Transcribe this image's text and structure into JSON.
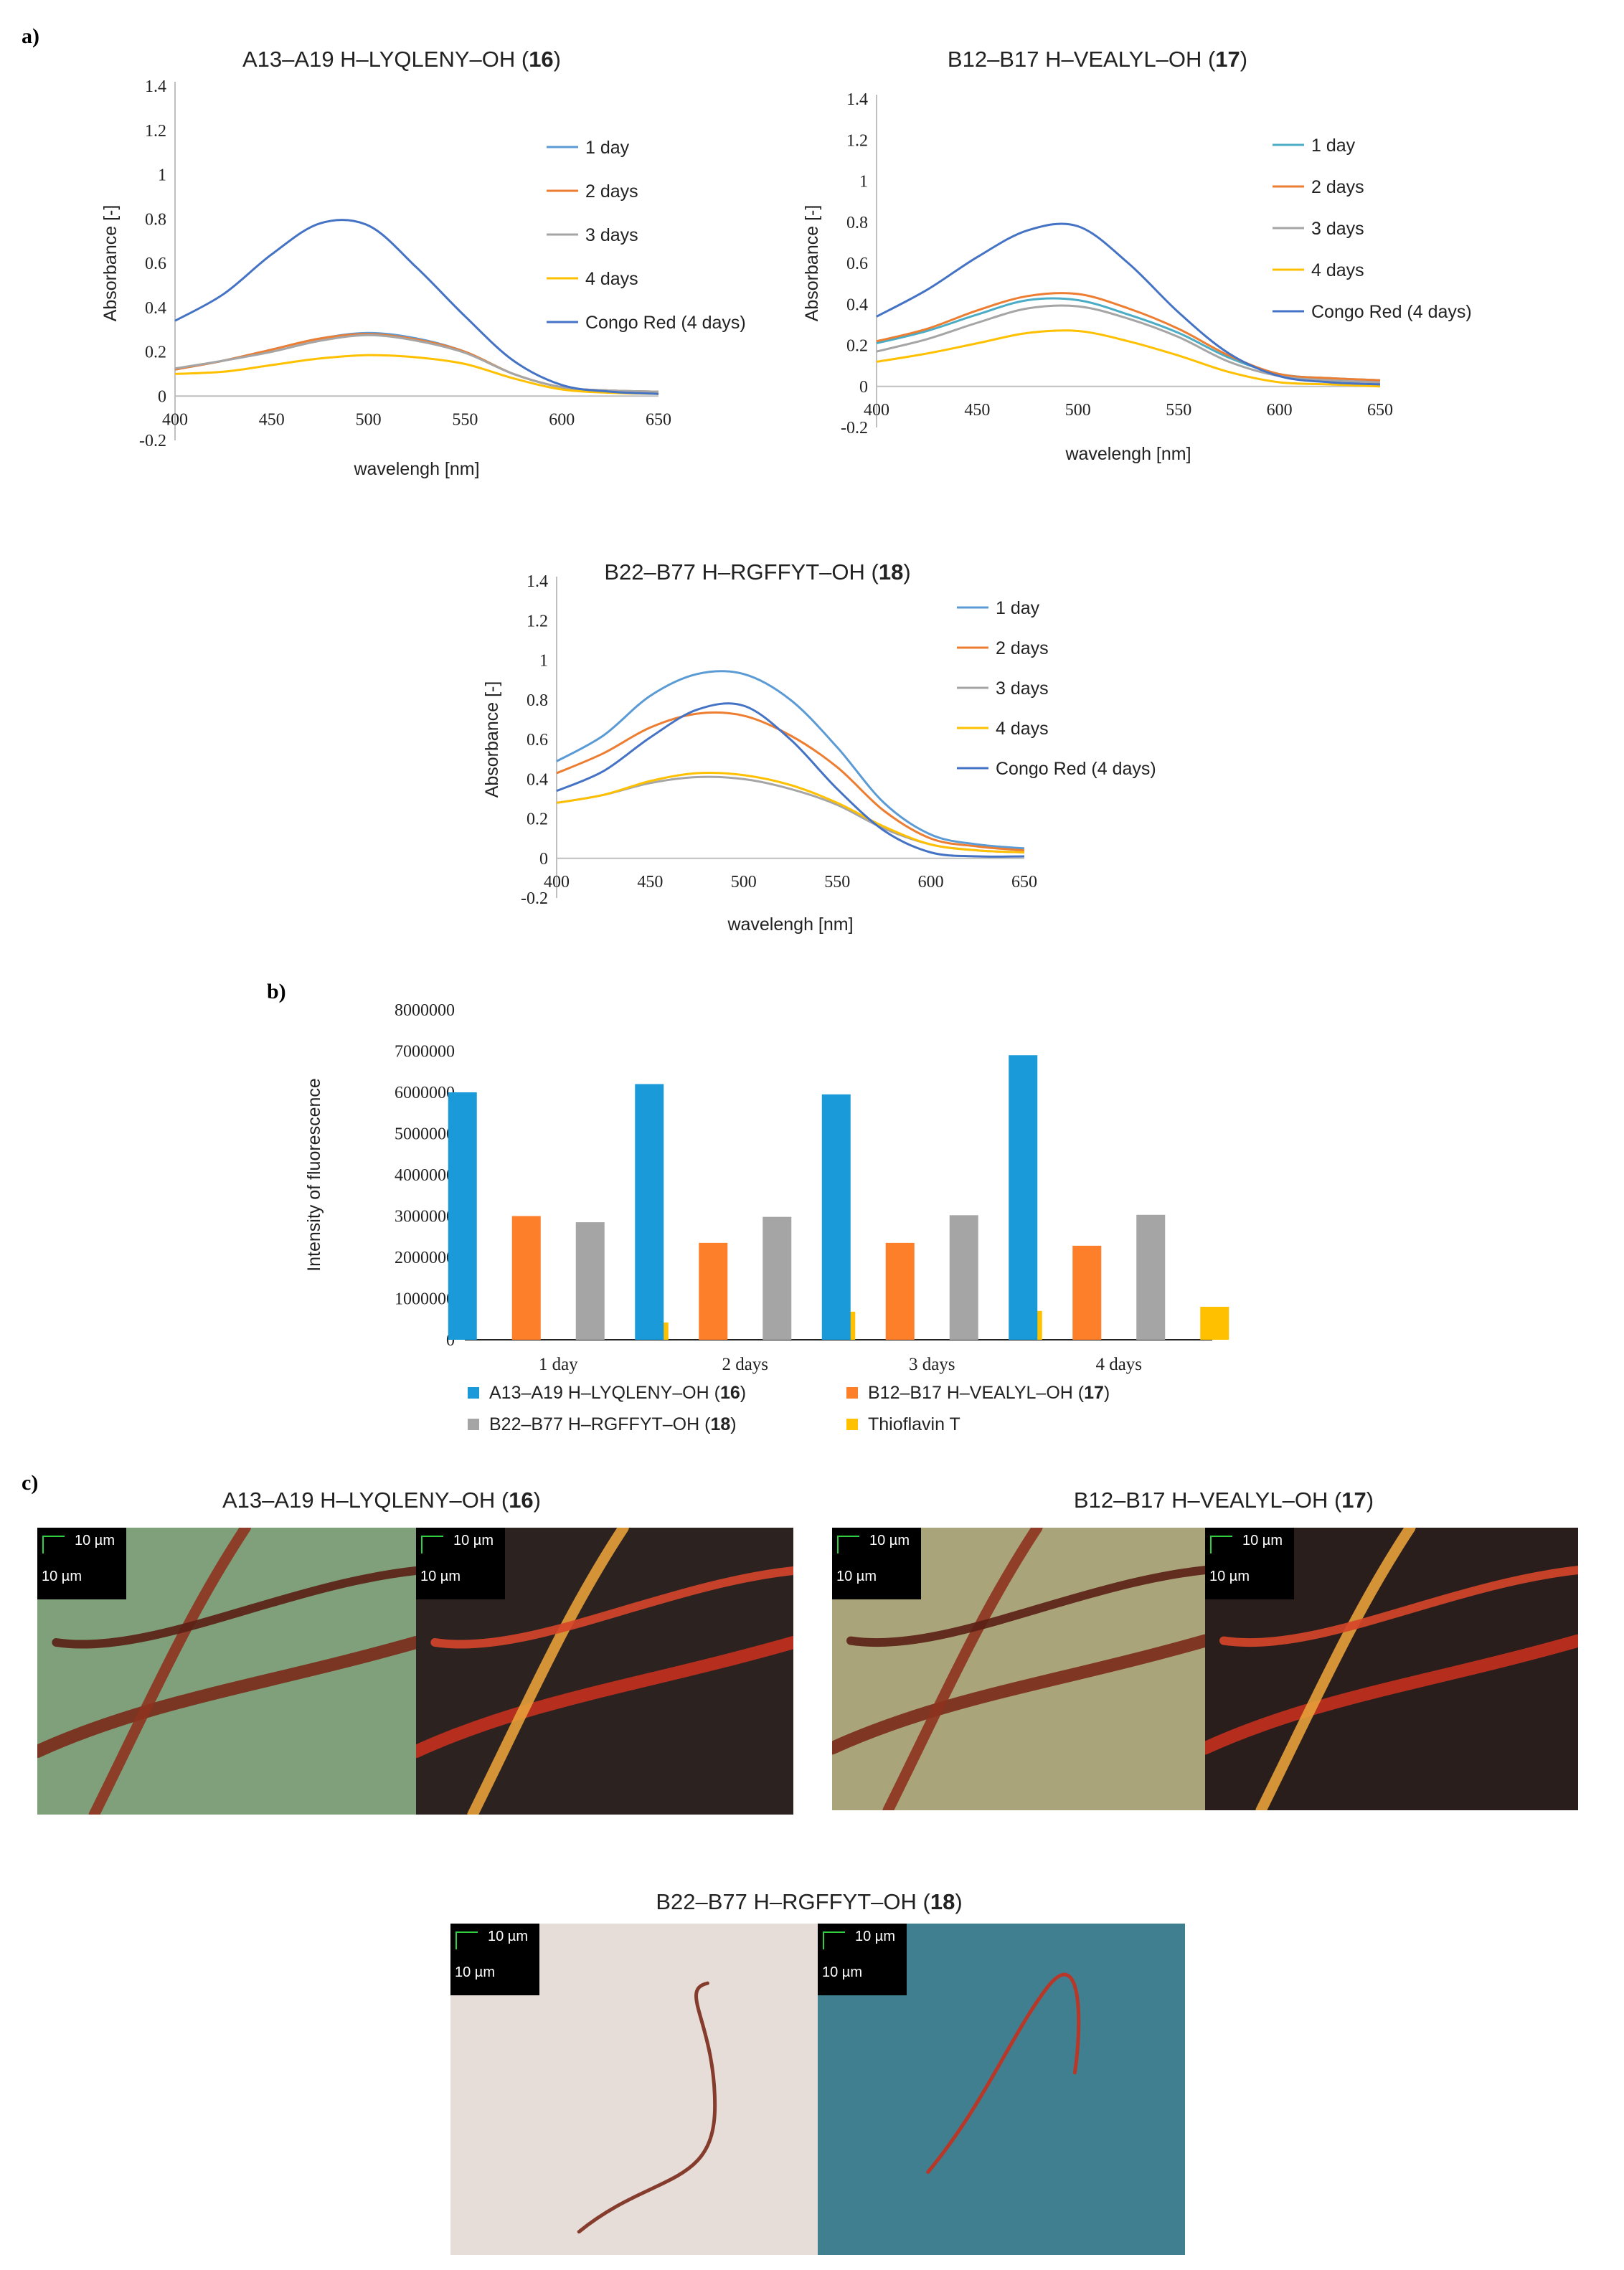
{
  "panel_labels": {
    "a": "a)",
    "b": "b)",
    "c": "c)"
  },
  "chart_data": [
    {
      "id": "absorbance-16",
      "type": "line",
      "title": "A13–A19 H–LYQLENY–OH",
      "compound": "16",
      "xlabel": "wavelengh [nm]",
      "ylabel": "Absorbance [-]",
      "xlim": [
        400,
        650
      ],
      "ylim": [
        -0.2,
        1.4
      ],
      "x_ticks": [
        "400",
        "450",
        "500",
        "550",
        "600",
        "650"
      ],
      "y_ticks": [
        "1.4",
        "1.2",
        "1",
        "0.8",
        "0.6",
        "0.4",
        "0.2",
        "0",
        "-0.2"
      ],
      "legend_position": "right",
      "x": [
        400,
        425,
        450,
        475,
        500,
        525,
        550,
        575,
        600,
        625,
        650
      ],
      "series": [
        {
          "name": "1 day",
          "color": "#5b9bd5",
          "values": [
            0.12,
            0.16,
            0.21,
            0.26,
            0.285,
            0.26,
            0.2,
            0.1,
            0.04,
            0.025,
            0.02
          ]
        },
        {
          "name": "2 days",
          "color": "#ed7d31",
          "values": [
            0.12,
            0.16,
            0.21,
            0.26,
            0.28,
            0.255,
            0.2,
            0.1,
            0.04,
            0.025,
            0.02
          ]
        },
        {
          "name": "3 days",
          "color": "#a5a5a5",
          "values": [
            0.125,
            0.16,
            0.2,
            0.25,
            0.275,
            0.25,
            0.195,
            0.1,
            0.04,
            0.025,
            0.02
          ]
        },
        {
          "name": "4 days",
          "color": "#ffc000",
          "values": [
            0.1,
            0.11,
            0.14,
            0.17,
            0.185,
            0.175,
            0.145,
            0.08,
            0.03,
            0.015,
            0.01
          ]
        },
        {
          "name": "Congo Red (4 days)",
          "color": "#4472c4",
          "values": [
            0.34,
            0.46,
            0.64,
            0.78,
            0.77,
            0.58,
            0.36,
            0.16,
            0.05,
            0.02,
            0.01
          ]
        }
      ]
    },
    {
      "id": "absorbance-17",
      "type": "line",
      "title": "B12–B17 H–VEALYL–OH",
      "compound": "17",
      "xlabel": "wavelengh [nm]",
      "ylabel": "Absorbance [-]",
      "xlim": [
        400,
        650
      ],
      "ylim": [
        -0.2,
        1.4
      ],
      "x_ticks": [
        "400",
        "450",
        "500",
        "550",
        "600",
        "650"
      ],
      "y_ticks": [
        "1.4",
        "1.2",
        "1",
        "0.8",
        "0.6",
        "0.4",
        "0.2",
        "0",
        "-0.2"
      ],
      "legend_position": "right",
      "x": [
        400,
        425,
        450,
        475,
        500,
        525,
        550,
        575,
        600,
        625,
        650
      ],
      "series": [
        {
          "name": "1 day",
          "color": "#4bacc6",
          "values": [
            0.21,
            0.27,
            0.35,
            0.42,
            0.42,
            0.35,
            0.26,
            0.14,
            0.06,
            0.04,
            0.03
          ]
        },
        {
          "name": "2 days",
          "color": "#ed7d31",
          "values": [
            0.22,
            0.28,
            0.37,
            0.44,
            0.45,
            0.38,
            0.28,
            0.15,
            0.06,
            0.04,
            0.03
          ]
        },
        {
          "name": "3 days",
          "color": "#a5a5a5",
          "values": [
            0.17,
            0.23,
            0.31,
            0.38,
            0.39,
            0.33,
            0.24,
            0.12,
            0.05,
            0.03,
            0.02
          ]
        },
        {
          "name": "4 days",
          "color": "#ffc000",
          "values": [
            0.12,
            0.16,
            0.21,
            0.26,
            0.27,
            0.22,
            0.15,
            0.07,
            0.02,
            0.01,
            0.0
          ]
        },
        {
          "name": "Congo Red (4 days)",
          "color": "#4472c4",
          "values": [
            0.34,
            0.47,
            0.63,
            0.76,
            0.78,
            0.6,
            0.36,
            0.16,
            0.05,
            0.02,
            0.01
          ]
        }
      ]
    },
    {
      "id": "absorbance-18",
      "type": "line",
      "title": "B22–B77 H–RGFFYT–OH",
      "compound": "18",
      "xlabel": "wavelengh [nm]",
      "ylabel": "Absorbance [-]",
      "xlim": [
        400,
        650
      ],
      "ylim": [
        -0.2,
        1.4
      ],
      "x_ticks": [
        "400",
        "450",
        "500",
        "550",
        "600",
        "650"
      ],
      "y_ticks": [
        "1.4",
        "1.2",
        "1",
        "0.8",
        "0.6",
        "0.4",
        "0.2",
        "0",
        "-0.2"
      ],
      "legend_position": "right",
      "x": [
        400,
        425,
        450,
        475,
        500,
        525,
        550,
        575,
        600,
        625,
        650
      ],
      "series": [
        {
          "name": "1 day",
          "color": "#5b9bd5",
          "values": [
            0.49,
            0.62,
            0.82,
            0.93,
            0.93,
            0.8,
            0.56,
            0.28,
            0.12,
            0.07,
            0.05
          ]
        },
        {
          "name": "2 days",
          "color": "#ed7d31",
          "values": [
            0.43,
            0.53,
            0.66,
            0.73,
            0.72,
            0.62,
            0.46,
            0.24,
            0.1,
            0.06,
            0.04
          ]
        },
        {
          "name": "3 days",
          "color": "#a5a5a5",
          "values": [
            0.28,
            0.32,
            0.38,
            0.41,
            0.4,
            0.35,
            0.27,
            0.15,
            0.07,
            0.04,
            0.03
          ]
        },
        {
          "name": "4 days",
          "color": "#ffc000",
          "values": [
            0.28,
            0.32,
            0.39,
            0.43,
            0.42,
            0.37,
            0.28,
            0.16,
            0.07,
            0.04,
            0.03
          ]
        },
        {
          "name": "Congo Red (4 days)",
          "color": "#4472c4",
          "values": [
            0.34,
            0.44,
            0.61,
            0.75,
            0.77,
            0.6,
            0.35,
            0.14,
            0.03,
            0.01,
            0.01
          ]
        }
      ]
    },
    {
      "id": "fluorescence",
      "type": "bar",
      "title": "",
      "xlabel": "",
      "ylabel": "Intensity of fluorescence",
      "ylim": [
        0,
        8000000
      ],
      "y_ticks": [
        "8000000",
        "7000000",
        "6000000",
        "5000000",
        "4000000",
        "3000000",
        "2000000",
        "1000000",
        "0"
      ],
      "categories": [
        "1 day",
        "2 days",
        "3 days",
        "4 days"
      ],
      "legend_position": "bottom",
      "series": [
        {
          "name": "A13–A19 H–LYQLENY–OH",
          "compound": "16",
          "color": "#1a9ad9",
          "values": [
            6000000,
            6200000,
            5950000,
            6900000
          ]
        },
        {
          "name": "B12–B17 H–VEALYL–OH",
          "compound": "17",
          "color": "#fd7f2a",
          "values": [
            3000000,
            2350000,
            2350000,
            2280000
          ]
        },
        {
          "name": "B22–B77 H–RGFFYT–OH",
          "compound": "18",
          "color": "#a5a5a5",
          "values": [
            2850000,
            2980000,
            3020000,
            3030000
          ]
        },
        {
          "name": "Thioflavin T",
          "compound": "",
          "color": "#ffc000",
          "values": [
            420000,
            680000,
            700000,
            800000
          ]
        }
      ]
    }
  ],
  "micrographs": {
    "groups": [
      {
        "title": "A13–A19 H–LYQLENY–OH",
        "compound": "16"
      },
      {
        "title": "B12–B17 H–VEALYL–OH",
        "compound": "17"
      },
      {
        "title": "B22–B77 H–RGFFYT–OH",
        "compound": "18"
      }
    ],
    "scale_bar": "10 µm",
    "scale_label": "10 µm",
    "panels": [
      {
        "group": 0,
        "kind": "bright-field",
        "bg": "#7fa07a"
      },
      {
        "group": 0,
        "kind": "polarized",
        "bg": "#2c2220"
      },
      {
        "group": 1,
        "kind": "bright-field",
        "bg": "#a9a47a"
      },
      {
        "group": 1,
        "kind": "polarized",
        "bg": "#2a1e1c"
      },
      {
        "group": 2,
        "kind": "bright-field",
        "bg": "#e6ddd8"
      },
      {
        "group": 2,
        "kind": "polarized",
        "bg": "#3f7f8f"
      }
    ]
  }
}
